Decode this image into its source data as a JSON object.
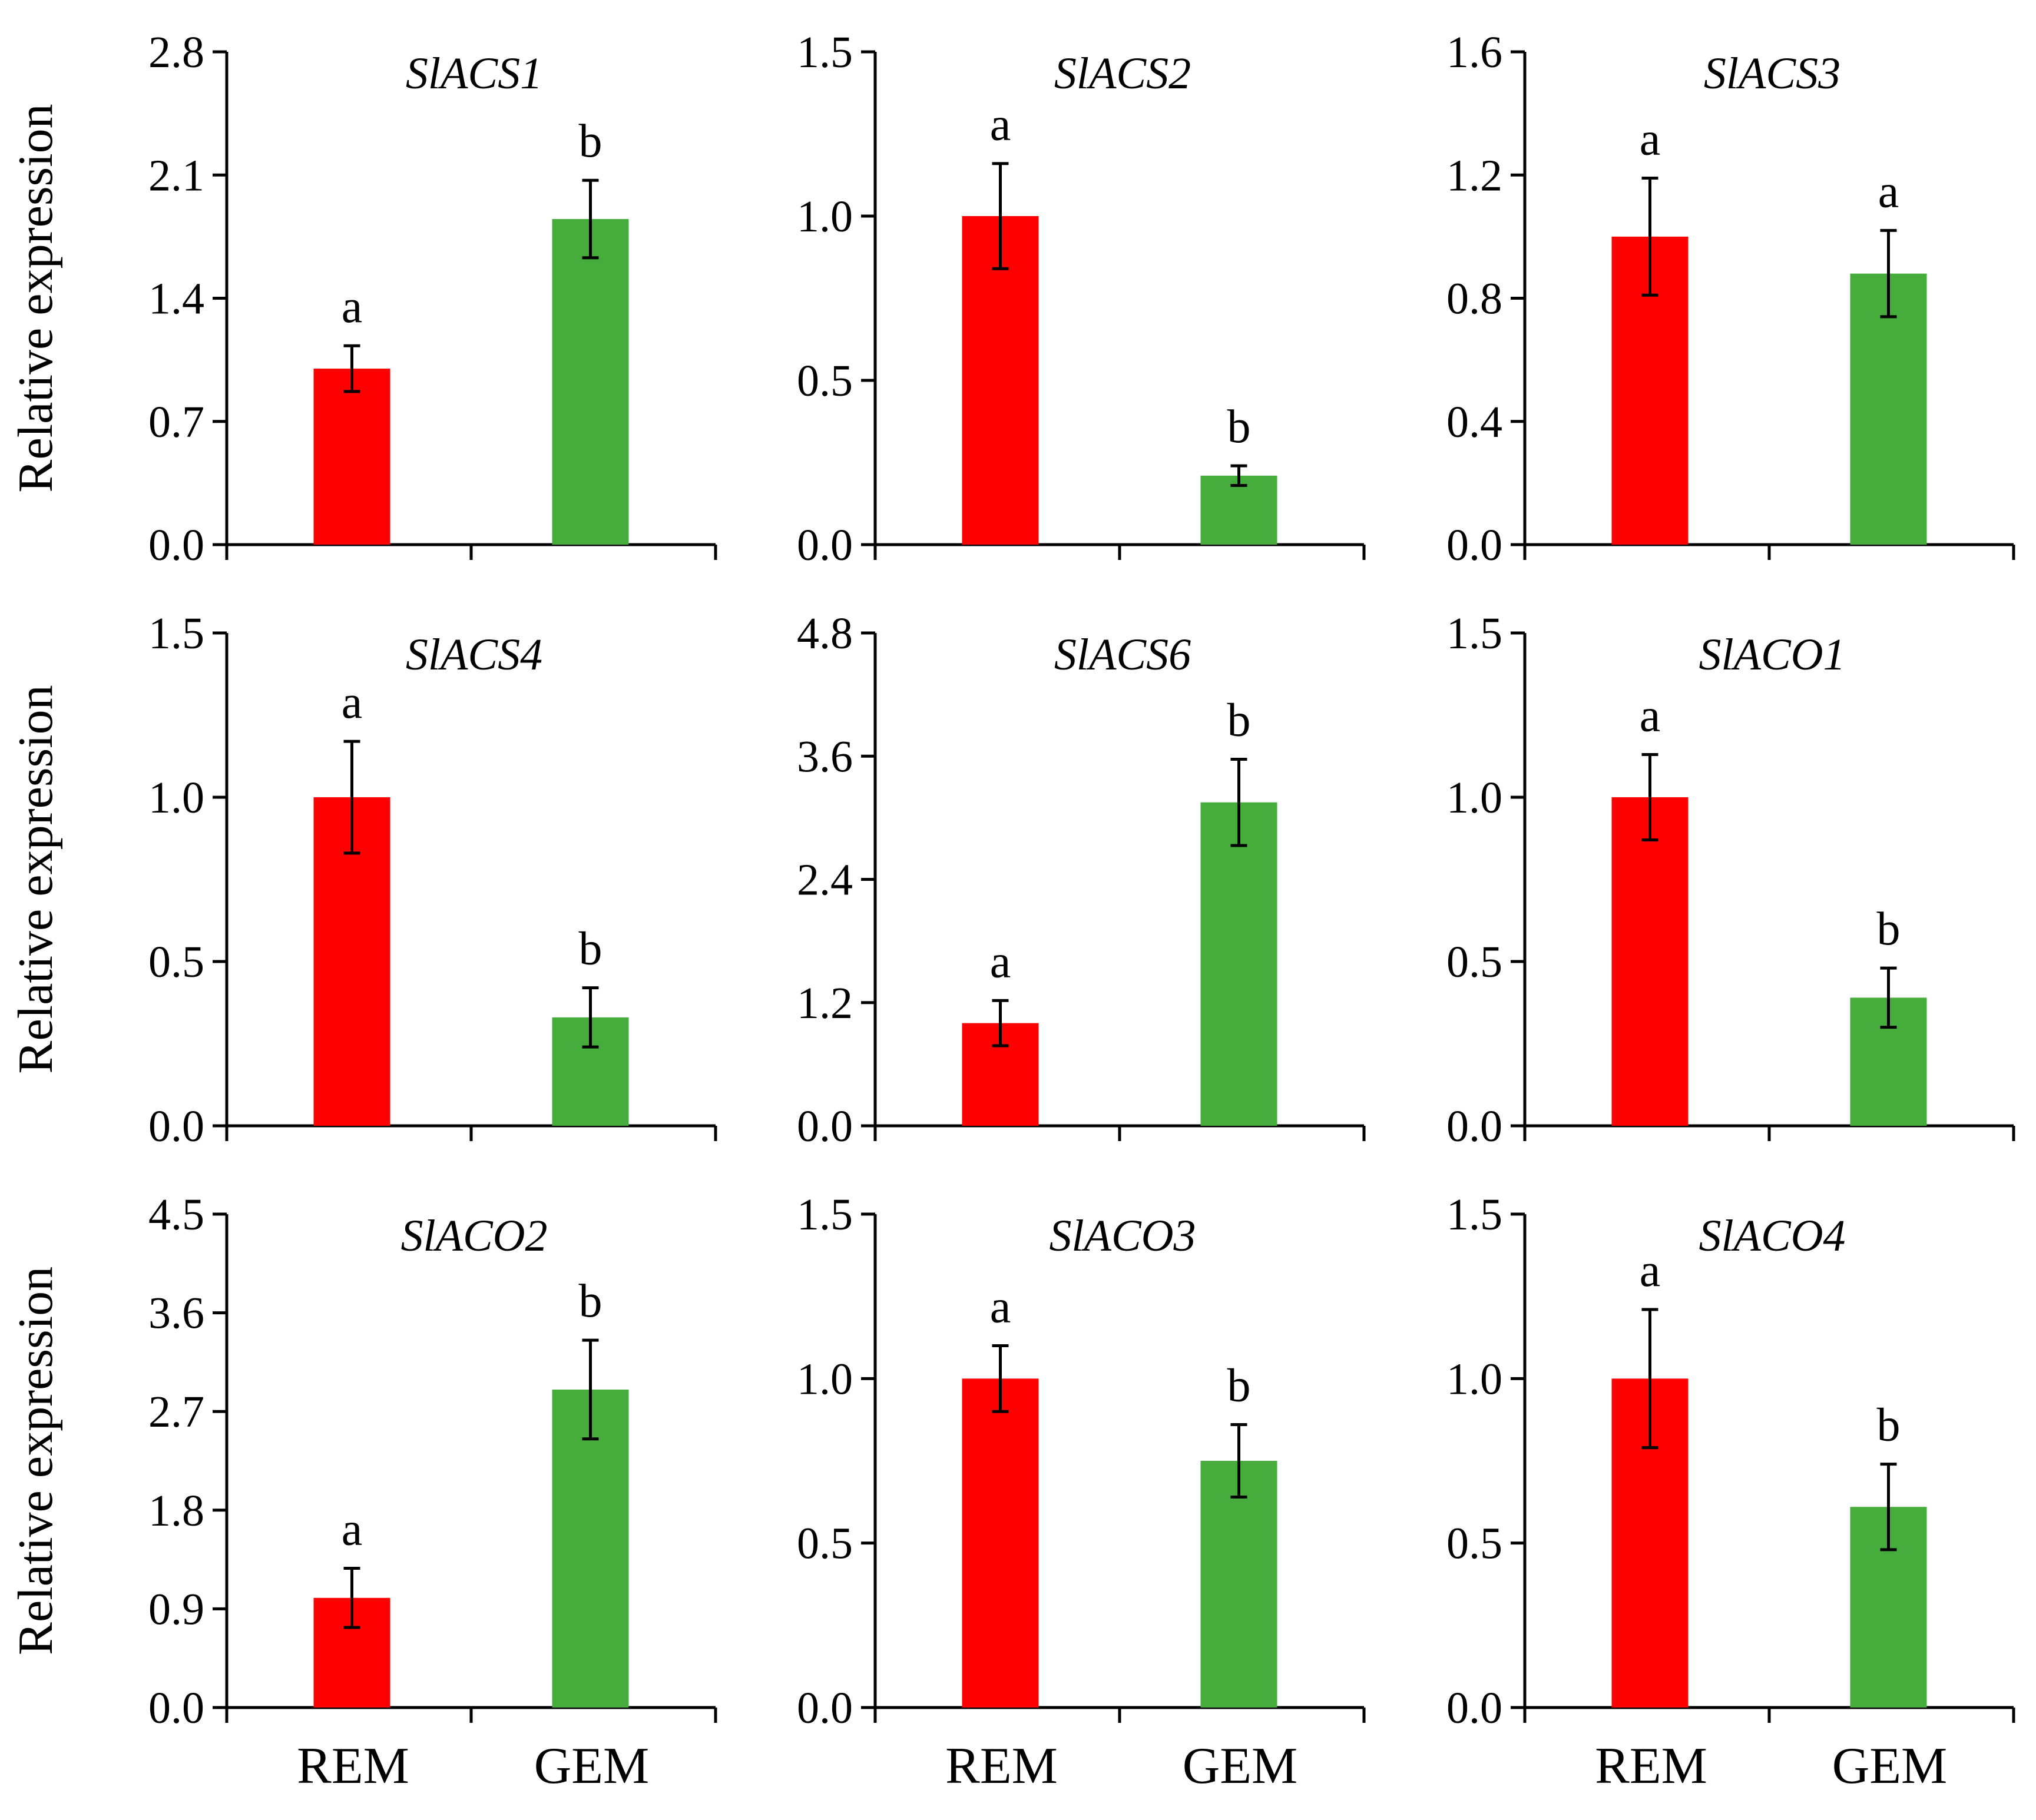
{
  "chart_data": [
    {
      "type": "bar",
      "title": "SlACS1",
      "ylabel": "Relative expression",
      "categories": [
        "REM",
        "GEM"
      ],
      "values": [
        1.0,
        1.85
      ],
      "errors": [
        0.13,
        0.22
      ],
      "sig_letters": [
        "a",
        "b"
      ],
      "ylim": [
        0,
        2.8
      ],
      "yticks": [
        "0.0",
        "0.7",
        "1.4",
        "2.1",
        "2.8"
      ],
      "show_xticklabels": false
    },
    {
      "type": "bar",
      "title": "SlACS2",
      "ylabel": "",
      "categories": [
        "REM",
        "GEM"
      ],
      "values": [
        1.0,
        0.21
      ],
      "errors": [
        0.16,
        0.03
      ],
      "sig_letters": [
        "a",
        "b"
      ],
      "ylim": [
        0,
        1.5
      ],
      "yticks": [
        "0.0",
        "0.5",
        "1.0",
        "1.5"
      ],
      "show_xticklabels": false
    },
    {
      "type": "bar",
      "title": "SlACS3",
      "ylabel": "",
      "categories": [
        "REM",
        "GEM"
      ],
      "values": [
        1.0,
        0.88
      ],
      "errors": [
        0.19,
        0.14
      ],
      "sig_letters": [
        "a",
        "a"
      ],
      "ylim": [
        0,
        1.6
      ],
      "yticks": [
        "0.0",
        "0.4",
        "0.8",
        "1.2",
        "1.6"
      ],
      "show_xticklabels": false
    },
    {
      "type": "bar",
      "title": "SlACS4",
      "ylabel": "Relative expression",
      "categories": [
        "REM",
        "GEM"
      ],
      "values": [
        1.0,
        0.33
      ],
      "errors": [
        0.17,
        0.09
      ],
      "sig_letters": [
        "a",
        "b"
      ],
      "ylim": [
        0,
        1.5
      ],
      "yticks": [
        "0.0",
        "0.5",
        "1.0",
        "1.5"
      ],
      "show_xticklabels": false
    },
    {
      "type": "bar",
      "title": "SlACS6",
      "ylabel": "",
      "categories": [
        "REM",
        "GEM"
      ],
      "values": [
        1.0,
        3.15
      ],
      "errors": [
        0.22,
        0.42
      ],
      "sig_letters": [
        "a",
        "b"
      ],
      "ylim": [
        0,
        4.8
      ],
      "yticks": [
        "0.0",
        "1.2",
        "2.4",
        "3.6",
        "4.8"
      ],
      "show_xticklabels": false
    },
    {
      "type": "bar",
      "title": "SlACO1",
      "ylabel": "",
      "categories": [
        "REM",
        "GEM"
      ],
      "values": [
        1.0,
        0.39
      ],
      "errors": [
        0.13,
        0.09
      ],
      "sig_letters": [
        "a",
        "b"
      ],
      "ylim": [
        0,
        1.5
      ],
      "yticks": [
        "0.0",
        "0.5",
        "1.0",
        "1.5"
      ],
      "show_xticklabels": false
    },
    {
      "type": "bar",
      "title": "SlACO2",
      "ylabel": "Relative expression",
      "categories": [
        "REM",
        "GEM"
      ],
      "values": [
        1.0,
        2.9
      ],
      "errors": [
        0.27,
        0.45
      ],
      "sig_letters": [
        "a",
        "b"
      ],
      "ylim": [
        0,
        4.5
      ],
      "yticks": [
        "0.0",
        "0.9",
        "1.8",
        "2.7",
        "3.6",
        "4.5"
      ],
      "show_xticklabels": true
    },
    {
      "type": "bar",
      "title": "SlACO3",
      "ylabel": "",
      "categories": [
        "REM",
        "GEM"
      ],
      "values": [
        1.0,
        0.75
      ],
      "errors": [
        0.1,
        0.11
      ],
      "sig_letters": [
        "a",
        "b"
      ],
      "ylim": [
        0,
        1.5
      ],
      "yticks": [
        "0.0",
        "0.5",
        "1.0",
        "1.5"
      ],
      "show_xticklabels": true
    },
    {
      "type": "bar",
      "title": "SlACO4",
      "ylabel": "",
      "categories": [
        "REM",
        "GEM"
      ],
      "values": [
        1.0,
        0.61
      ],
      "errors": [
        0.21,
        0.13
      ],
      "sig_letters": [
        "a",
        "b"
      ],
      "ylim": [
        0,
        1.5
      ],
      "yticks": [
        "0.0",
        "0.5",
        "1.0",
        "1.5"
      ],
      "show_xticklabels": true
    }
  ],
  "colors": {
    "REM": "#ff0000",
    "GEM": "#46ad3c"
  }
}
